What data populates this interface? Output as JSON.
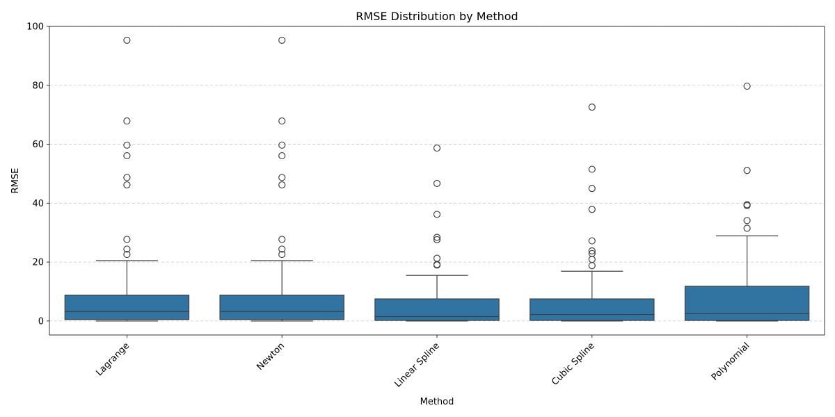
{
  "chart_data": {
    "type": "box",
    "title": "RMSE Distribution by Method",
    "xlabel": "Method",
    "ylabel": "RMSE",
    "ylim": [
      -4.75,
      100
    ],
    "yticks": [
      0,
      20,
      40,
      60,
      80,
      100
    ],
    "grid": "horizontal dashed",
    "box_color": "#3274a1",
    "categories": [
      "Lagrange",
      "Newton",
      "Linear Spline",
      "Cubic Spline",
      "Polynomial"
    ],
    "boxes": [
      {
        "category": "Lagrange",
        "whisker_low": 0.0,
        "q1": 0.5,
        "median": 3.2,
        "q3": 8.8,
        "whisker_high": 20.5,
        "outliers": [
          22.6,
          24.4,
          27.7,
          46.2,
          48.7,
          56.1,
          59.7,
          67.9,
          95.3
        ]
      },
      {
        "category": "Newton",
        "whisker_low": 0.0,
        "q1": 0.5,
        "median": 3.2,
        "q3": 8.8,
        "whisker_high": 20.5,
        "outliers": [
          22.6,
          24.4,
          27.7,
          46.2,
          48.7,
          56.1,
          59.7,
          67.9,
          95.3
        ]
      },
      {
        "category": "Linear Spline",
        "whisker_low": 0.0,
        "q1": 0.2,
        "median": 1.5,
        "q3": 7.5,
        "whisker_high": 15.5,
        "outliers": [
          19.0,
          19.2,
          21.3,
          27.6,
          28.4,
          36.2,
          46.7,
          58.7
        ]
      },
      {
        "category": "Cubic Spline",
        "whisker_low": 0.0,
        "q1": 0.2,
        "median": 2.2,
        "q3": 7.5,
        "whisker_high": 16.9,
        "outliers": [
          18.8,
          20.9,
          22.9,
          23.8,
          27.2,
          37.9,
          45.0,
          51.5,
          72.6
        ]
      },
      {
        "category": "Polynomial",
        "whisker_low": 0.0,
        "q1": 0.2,
        "median": 2.5,
        "q3": 11.8,
        "whisker_high": 28.9,
        "outliers": [
          31.5,
          34.1,
          39.2,
          39.5,
          51.1,
          79.7
        ]
      }
    ]
  }
}
